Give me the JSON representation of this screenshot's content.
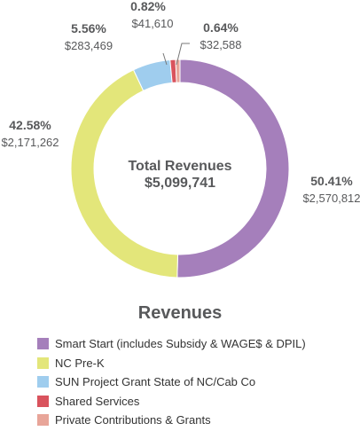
{
  "chart_data": {
    "type": "donut",
    "title": "Revenues",
    "center_title": "Total Revenues",
    "center_value": "$5,099,741",
    "categories": [
      "Smart Start (includes Subsidy & WAGE$ & DPIL)",
      "NC Pre-K",
      "SUN Project Grant State of NC/Cab Co",
      "Shared Services",
      "Private Contributions & Grants"
    ],
    "values": [
      2570812,
      2171262,
      283469,
      41610,
      32588
    ],
    "percent_labels": [
      "50.41%",
      "42.58%",
      "5.56%",
      "0.82%",
      "0.64%"
    ],
    "value_labels": [
      "$2,570,812",
      "$2,171,262",
      "$283,469",
      "$41,610",
      "$32,588"
    ],
    "colors": [
      "#a57fbb",
      "#e3e67a",
      "#9fcdee",
      "#d9535d",
      "#e8a599"
    ],
    "legend_position": "bottom"
  }
}
